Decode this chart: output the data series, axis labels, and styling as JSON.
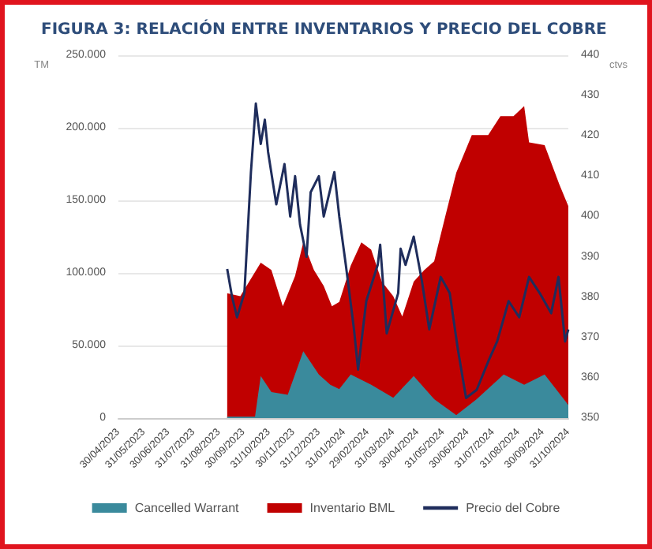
{
  "chart_data": {
    "type": "area",
    "title": "FIGURA 3: RELACIÓN ENTRE INVENTARIOS Y PRECIO DEL COBRE",
    "ylabel": "TM",
    "y2label": "ctvs",
    "xlim": [
      "2023-04-30",
      "2024-10-31"
    ],
    "xticks": [
      {
        "value": "2023-04-30",
        "label": "30/04/2023"
      },
      {
        "value": "2023-05-31",
        "label": "31/05/2023"
      },
      {
        "value": "2023-06-30",
        "label": "30/06/2023"
      },
      {
        "value": "2023-07-31",
        "label": "31/07/2023"
      },
      {
        "value": "2023-08-31",
        "label": "31/08/2023"
      },
      {
        "value": "2023-09-30",
        "label": "30/09/2023"
      },
      {
        "value": "2023-10-31",
        "label": "31/10/2023"
      },
      {
        "value": "2023-11-30",
        "label": "30/11/2023"
      },
      {
        "value": "2023-12-31",
        "label": "31/12/2023"
      },
      {
        "value": "2024-01-31",
        "label": "31/01/2024"
      },
      {
        "value": "2024-02-29",
        "label": "29/02/2024"
      },
      {
        "value": "2024-03-31",
        "label": "31/03/2024"
      },
      {
        "value": "2024-04-30",
        "label": "30/04/2024"
      },
      {
        "value": "2024-05-31",
        "label": "31/05/2024"
      },
      {
        "value": "2024-06-30",
        "label": "30/06/2024"
      },
      {
        "value": "2024-07-31",
        "label": "31/07/2024"
      },
      {
        "value": "2024-08-31",
        "label": "31/08/2024"
      },
      {
        "value": "2024-09-30",
        "label": "30/09/2024"
      },
      {
        "value": "2024-10-31",
        "label": "31/10/2024"
      }
    ],
    "ylim": [
      0,
      250000
    ],
    "yticks": [
      {
        "value": 0,
        "label": "0"
      },
      {
        "value": 50000,
        "label": "50.000"
      },
      {
        "value": 100000,
        "label": "100.000"
      },
      {
        "value": 150000,
        "label": "150.000"
      },
      {
        "value": 200000,
        "label": "200.000"
      },
      {
        "value": 250000,
        "label": "250.000"
      }
    ],
    "y2lim": [
      350,
      440
    ],
    "y2ticks": [
      350,
      360,
      370,
      380,
      390,
      400,
      410,
      420,
      430,
      440
    ],
    "grid": "y",
    "legend": "bottom",
    "series": [
      {
        "name": "Cancelled Warrant",
        "color": "#3a8a9c",
        "x": [
          "2023-09-10",
          "2023-10-14",
          "2023-10-21",
          "2023-11-03",
          "2023-11-23",
          "2023-12-12",
          "2023-12-31",
          "2024-01-14",
          "2024-01-25",
          "2024-02-08",
          "2024-03-04",
          "2024-03-31",
          "2024-04-25",
          "2024-05-20",
          "2024-06-16",
          "2024-07-11",
          "2024-08-13",
          "2024-09-07",
          "2024-10-02",
          "2024-10-31"
        ],
        "values": [
          1000,
          1000,
          29000,
          18000,
          16000,
          46000,
          30000,
          23000,
          20000,
          30000,
          23000,
          14000,
          29000,
          13000,
          2000,
          13000,
          30000,
          23000,
          30000,
          9000
        ]
      },
      {
        "name": "Inventario BML",
        "color": "#c00000",
        "x": [
          "2023-09-10",
          "2023-09-26",
          "2023-10-21",
          "2023-11-03",
          "2023-11-17",
          "2023-12-02",
          "2023-12-12",
          "2023-12-25",
          "2024-01-06",
          "2024-01-16",
          "2024-01-25",
          "2024-02-08",
          "2024-02-21",
          "2024-03-04",
          "2024-03-17",
          "2024-03-31",
          "2024-04-11",
          "2024-04-25",
          "2024-05-08",
          "2024-05-20",
          "2024-06-03",
          "2024-06-16",
          "2024-07-05",
          "2024-07-25",
          "2024-08-09",
          "2024-08-25",
          "2024-09-07",
          "2024-09-13",
          "2024-10-02",
          "2024-10-20",
          "2024-10-31"
        ],
        "values": [
          86000,
          84000,
          107000,
          102000,
          77000,
          98000,
          121000,
          102000,
          91000,
          77000,
          80000,
          105000,
          121000,
          116000,
          94000,
          84000,
          70000,
          94000,
          102000,
          108000,
          140000,
          169000,
          195000,
          195000,
          208000,
          208000,
          215000,
          190000,
          188000,
          161000,
          146000
        ]
      },
      {
        "name": "Precio del Cobre",
        "type": "line",
        "axis": "y2",
        "color": "#1f2d5c",
        "x": [
          "2023-09-10",
          "2023-09-16",
          "2023-09-22",
          "2023-10-01",
          "2023-10-09",
          "2023-10-15",
          "2023-10-21",
          "2023-10-26",
          "2023-10-30",
          "2023-11-09",
          "2023-11-19",
          "2023-11-26",
          "2023-12-02",
          "2023-12-08",
          "2023-12-16",
          "2023-12-21",
          "2023-12-31",
          "2024-01-06",
          "2024-01-19",
          "2024-01-25",
          "2024-02-02",
          "2024-02-12",
          "2024-02-17",
          "2024-02-27",
          "2024-03-12",
          "2024-03-15",
          "2024-03-23",
          "2024-04-06",
          "2024-04-09",
          "2024-04-15",
          "2024-04-25",
          "2024-05-05",
          "2024-05-14",
          "2024-05-28",
          "2024-06-08",
          "2024-06-18",
          "2024-06-28",
          "2024-07-11",
          "2024-07-25",
          "2024-08-05",
          "2024-08-19",
          "2024-09-01",
          "2024-09-13",
          "2024-09-26",
          "2024-10-10",
          "2024-10-19",
          "2024-10-27",
          "2024-10-31"
        ],
        "values": [
          387,
          380,
          375,
          381,
          411,
          428,
          418,
          424,
          416,
          403,
          413,
          400,
          410,
          398,
          390,
          406,
          410,
          400,
          411,
          400,
          388,
          372,
          362,
          379,
          388,
          393,
          371,
          381,
          392,
          388,
          395,
          384,
          372,
          385,
          381,
          367,
          355,
          357,
          364,
          369,
          379,
          375,
          385,
          381,
          376,
          385,
          369,
          372
        ]
      }
    ]
  }
}
